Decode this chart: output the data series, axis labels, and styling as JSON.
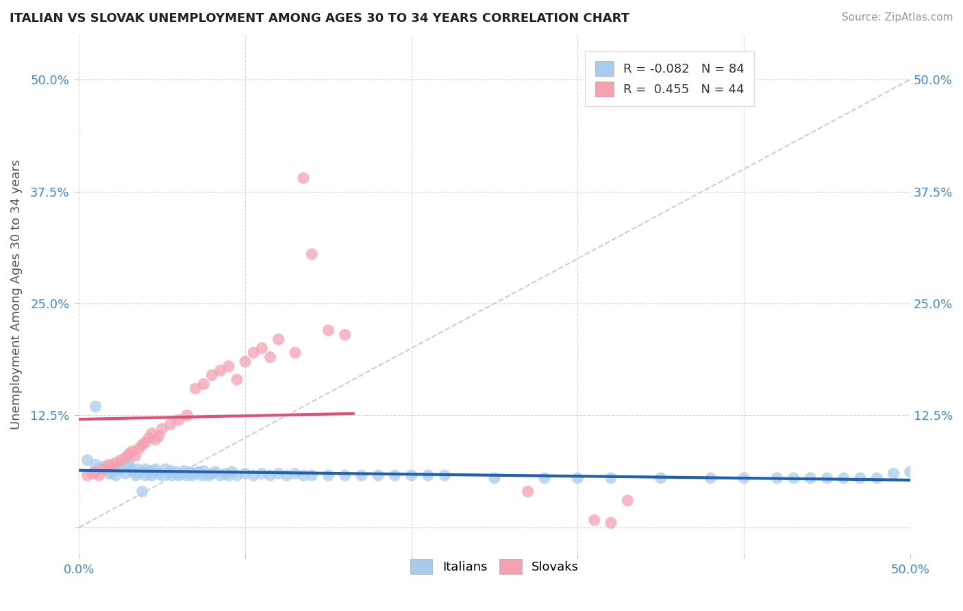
{
  "title": "ITALIAN VS SLOVAK UNEMPLOYMENT AMONG AGES 30 TO 34 YEARS CORRELATION CHART",
  "source_text": "Source: ZipAtlas.com",
  "ylabel": "Unemployment Among Ages 30 to 34 years",
  "xlim": [
    0.0,
    0.5
  ],
  "ylim": [
    -0.03,
    0.55
  ],
  "italian_R": -0.082,
  "italian_N": 84,
  "slovak_R": 0.455,
  "slovak_N": 44,
  "italian_color": "#A8CCEC",
  "slovak_color": "#F4A0B0",
  "italian_line_color": "#2060B0",
  "slovak_line_color": "#E05070",
  "ref_line_color": "#C8C8C8",
  "background_color": "#FFFFFF",
  "grid_color": "#CCCCCC",
  "italian_x": [
    0.005,
    0.01,
    0.012,
    0.015,
    0.018,
    0.02,
    0.022,
    0.025,
    0.025,
    0.028,
    0.03,
    0.03,
    0.032,
    0.034,
    0.035,
    0.036,
    0.038,
    0.04,
    0.04,
    0.042,
    0.043,
    0.044,
    0.045,
    0.046,
    0.048,
    0.05,
    0.052,
    0.054,
    0.055,
    0.056,
    0.058,
    0.06,
    0.062,
    0.063,
    0.065,
    0.067,
    0.068,
    0.07,
    0.072,
    0.074,
    0.075,
    0.078,
    0.08,
    0.082,
    0.085,
    0.088,
    0.09,
    0.092,
    0.095,
    0.1,
    0.105,
    0.11,
    0.115,
    0.12,
    0.125,
    0.13,
    0.135,
    0.14,
    0.15,
    0.16,
    0.17,
    0.18,
    0.19,
    0.2,
    0.21,
    0.22,
    0.25,
    0.28,
    0.3,
    0.32,
    0.35,
    0.38,
    0.4,
    0.42,
    0.43,
    0.44,
    0.45,
    0.46,
    0.47,
    0.48,
    0.01,
    0.49,
    0.038,
    0.5
  ],
  "italian_y": [
    0.075,
    0.07,
    0.065,
    0.068,
    0.06,
    0.062,
    0.058,
    0.065,
    0.07,
    0.06,
    0.068,
    0.072,
    0.063,
    0.058,
    0.065,
    0.06,
    0.062,
    0.058,
    0.065,
    0.06,
    0.063,
    0.058,
    0.062,
    0.065,
    0.06,
    0.058,
    0.065,
    0.06,
    0.063,
    0.058,
    0.062,
    0.058,
    0.06,
    0.063,
    0.058,
    0.062,
    0.058,
    0.06,
    0.062,
    0.058,
    0.063,
    0.058,
    0.06,
    0.062,
    0.058,
    0.06,
    0.058,
    0.062,
    0.058,
    0.06,
    0.058,
    0.06,
    0.058,
    0.06,
    0.058,
    0.06,
    0.058,
    0.058,
    0.058,
    0.058,
    0.058,
    0.058,
    0.058,
    0.058,
    0.058,
    0.058,
    0.055,
    0.055,
    0.055,
    0.055,
    0.055,
    0.055,
    0.055,
    0.055,
    0.055,
    0.055,
    0.055,
    0.055,
    0.055,
    0.055,
    0.135,
    0.06,
    0.04,
    0.062
  ],
  "slovak_x": [
    0.005,
    0.008,
    0.01,
    0.012,
    0.015,
    0.018,
    0.02,
    0.022,
    0.025,
    0.028,
    0.03,
    0.032,
    0.034,
    0.036,
    0.038,
    0.04,
    0.042,
    0.044,
    0.046,
    0.048,
    0.05,
    0.055,
    0.06,
    0.065,
    0.07,
    0.075,
    0.08,
    0.085,
    0.09,
    0.095,
    0.1,
    0.105,
    0.11,
    0.115,
    0.12,
    0.13,
    0.135,
    0.14,
    0.15,
    0.16,
    0.27,
    0.31,
    0.32,
    0.33
  ],
  "slovak_y": [
    0.058,
    0.06,
    0.062,
    0.058,
    0.065,
    0.07,
    0.068,
    0.072,
    0.075,
    0.078,
    0.082,
    0.085,
    0.08,
    0.088,
    0.092,
    0.095,
    0.1,
    0.105,
    0.098,
    0.102,
    0.11,
    0.115,
    0.12,
    0.125,
    0.155,
    0.16,
    0.17,
    0.175,
    0.18,
    0.165,
    0.185,
    0.195,
    0.2,
    0.19,
    0.21,
    0.195,
    0.39,
    0.305,
    0.22,
    0.215,
    0.04,
    0.008,
    0.005,
    0.03
  ]
}
